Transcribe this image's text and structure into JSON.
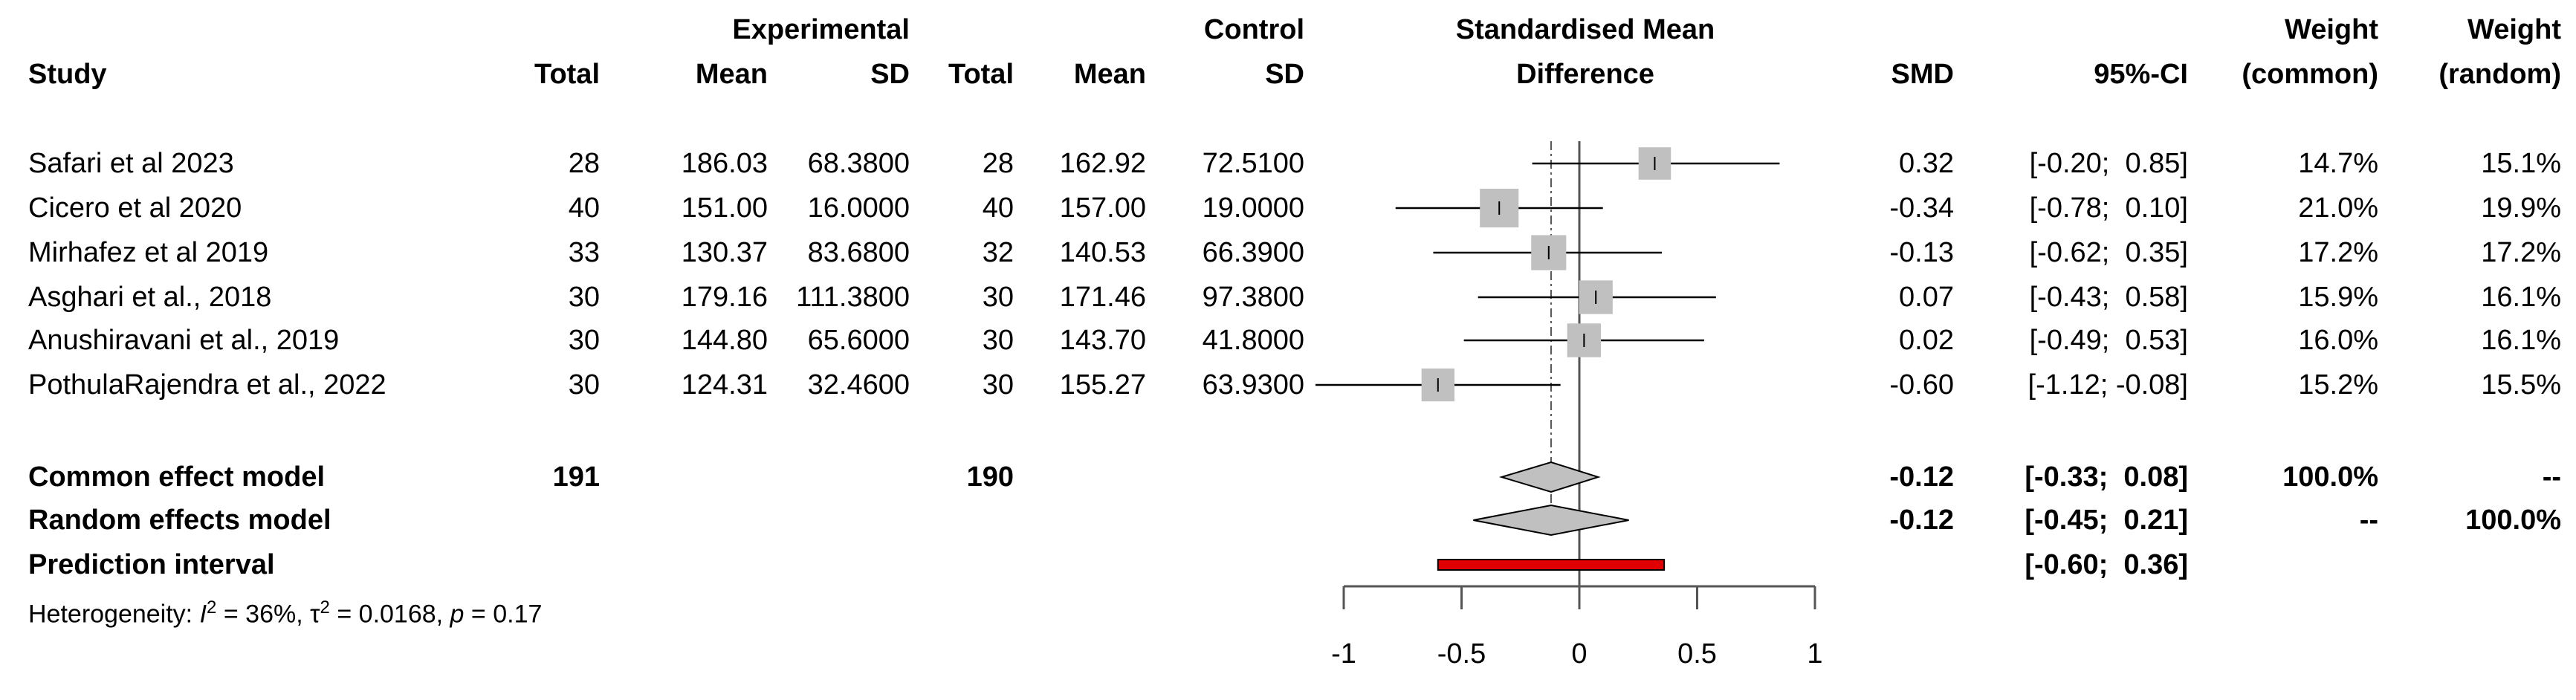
{
  "headers": {
    "study": "Study",
    "experimental": "Experimental",
    "control": "Control",
    "exp_total": "Total",
    "exp_mean": "Mean",
    "exp_sd": "SD",
    "ctl_total": "Total",
    "ctl_mean": "Mean",
    "ctl_sd": "SD",
    "plot_title_1": "Standardised Mean",
    "plot_title_2": "Difference",
    "smd": "SMD",
    "ci": "95%-CI",
    "weight1": "Weight",
    "weight_common": "(common)",
    "weight2": "Weight",
    "weight_random": "(random)"
  },
  "studies": [
    {
      "name": "Safari et al 2023",
      "e_total": "28",
      "e_mean": "186.03",
      "e_sd": "68.3800",
      "c_total": "28",
      "c_mean": "162.92",
      "c_sd": "72.5100",
      "smd_text": "0.32",
      "ci_text": "[-0.20;  0.85]",
      "w_common": "14.7%",
      "w_random": "15.1%"
    },
    {
      "name": "Cicero et al 2020",
      "e_total": "40",
      "e_mean": "151.00",
      "e_sd": "16.0000",
      "c_total": "40",
      "c_mean": "157.00",
      "c_sd": "19.0000",
      "smd_text": "-0.34",
      "ci_text": "[-0.78;  0.10]",
      "w_common": "21.0%",
      "w_random": "19.9%"
    },
    {
      "name": "Mirhafez et al 2019",
      "e_total": "33",
      "e_mean": "130.37",
      "e_sd": "83.6800",
      "c_total": "32",
      "c_mean": "140.53",
      "c_sd": "66.3900",
      "smd_text": "-0.13",
      "ci_text": "[-0.62;  0.35]",
      "w_common": "17.2%",
      "w_random": "17.2%"
    },
    {
      "name": "Asghari et al., 2018",
      "e_total": "30",
      "e_mean": "179.16",
      "e_sd": "111.3800",
      "c_total": "30",
      "c_mean": "171.46",
      "c_sd": "97.3800",
      "smd_text": "0.07",
      "ci_text": "[-0.43;  0.58]",
      "w_common": "15.9%",
      "w_random": "16.1%"
    },
    {
      "name": "Anushiravani et al., 2019",
      "e_total": "30",
      "e_mean": "144.80",
      "e_sd": "65.6000",
      "c_total": "30",
      "c_mean": "143.70",
      "c_sd": "41.8000",
      "smd_text": "0.02",
      "ci_text": "[-0.49;  0.53]",
      "w_common": "16.0%",
      "w_random": "16.1%"
    },
    {
      "name": "PothulaRajendra et al., 2022",
      "e_total": "30",
      "e_mean": "124.31",
      "e_sd": "32.4600",
      "c_total": "30",
      "c_mean": "155.27",
      "c_sd": "63.9300",
      "smd_text": "-0.60",
      "ci_text": "[-1.12; -0.08]",
      "w_common": "15.2%",
      "w_random": "15.5%"
    }
  ],
  "common": {
    "label": "Common effect model",
    "e_total": "191",
    "c_total": "190",
    "smd_text": "-0.12",
    "ci_text": "[-0.33;  0.08]",
    "w_common": "100.0%",
    "w_random": "--"
  },
  "random": {
    "label": "Random effects model",
    "smd_text": "-0.12",
    "ci_text": "[-0.45;  0.21]",
    "w_common": "--",
    "w_random": "100.0%"
  },
  "prediction": {
    "label": "Prediction interval",
    "ci_text": "[-0.60;  0.36]"
  },
  "heterogeneity": {
    "prefix": "Heterogeneity: ",
    "i2_sym": "I",
    "i2_val": " = 36%, ",
    "tau_sym": "τ",
    "tau_val": " = 0.0168, ",
    "p_sym": "p",
    "p_val": " = 0.17"
  },
  "chart_data": {
    "type": "forest",
    "xlim": [
      -1,
      1
    ],
    "ticks": [
      "-1",
      "-0.5",
      "0",
      "0.5",
      "1"
    ],
    "tick_values": [
      -1,
      -0.5,
      0,
      0.5,
      1
    ],
    "studies": [
      {
        "smd": 0.32,
        "lo": -0.2,
        "hi": 0.85,
        "weight": 14.7
      },
      {
        "smd": -0.34,
        "lo": -0.78,
        "hi": 0.1,
        "weight": 21.0
      },
      {
        "smd": -0.13,
        "lo": -0.62,
        "hi": 0.35,
        "weight": 17.2
      },
      {
        "smd": 0.07,
        "lo": -0.43,
        "hi": 0.58,
        "weight": 15.9
      },
      {
        "smd": 0.02,
        "lo": -0.49,
        "hi": 0.53,
        "weight": 16.0
      },
      {
        "smd": -0.6,
        "lo": -1.12,
        "hi": -0.08,
        "weight": 15.2
      }
    ],
    "common": {
      "smd": -0.12,
      "lo": -0.33,
      "hi": 0.08
    },
    "random": {
      "smd": -0.12,
      "lo": -0.45,
      "hi": 0.21
    },
    "prediction": {
      "lo": -0.6,
      "hi": 0.36
    },
    "colors": {
      "square": "#c0c0c0",
      "diamond": "#c0c0c0",
      "prediction": "#e00000",
      "line": "#000000"
    }
  }
}
